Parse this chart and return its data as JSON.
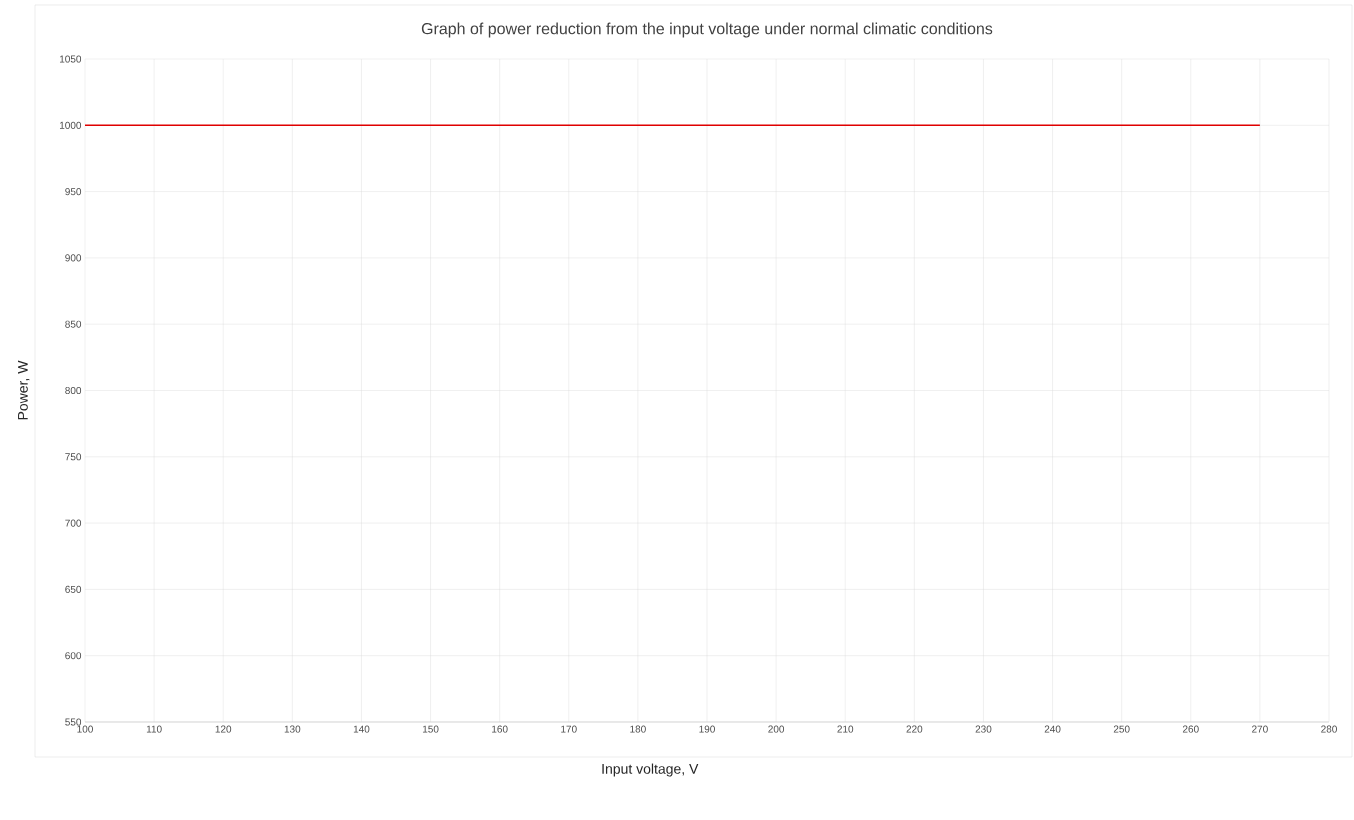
{
  "chart_data": {
    "type": "line",
    "title": "Graph of power reduction from the input voltage under normal climatic conditions",
    "xlabel": "Input voltage, V",
    "ylabel": "Power, W",
    "x": [
      100,
      270
    ],
    "series": [
      {
        "color": "#e00000",
        "values": [
          1000,
          1000
        ]
      }
    ],
    "xlim": [
      100,
      280
    ],
    "ylim": [
      550,
      1050
    ],
    "xticks": [
      100,
      110,
      120,
      130,
      140,
      150,
      160,
      170,
      180,
      190,
      200,
      210,
      220,
      230,
      240,
      250,
      260,
      270,
      280
    ],
    "yticks": [
      550,
      600,
      650,
      700,
      750,
      800,
      850,
      900,
      950,
      1000,
      1050
    ],
    "grid": true
  }
}
